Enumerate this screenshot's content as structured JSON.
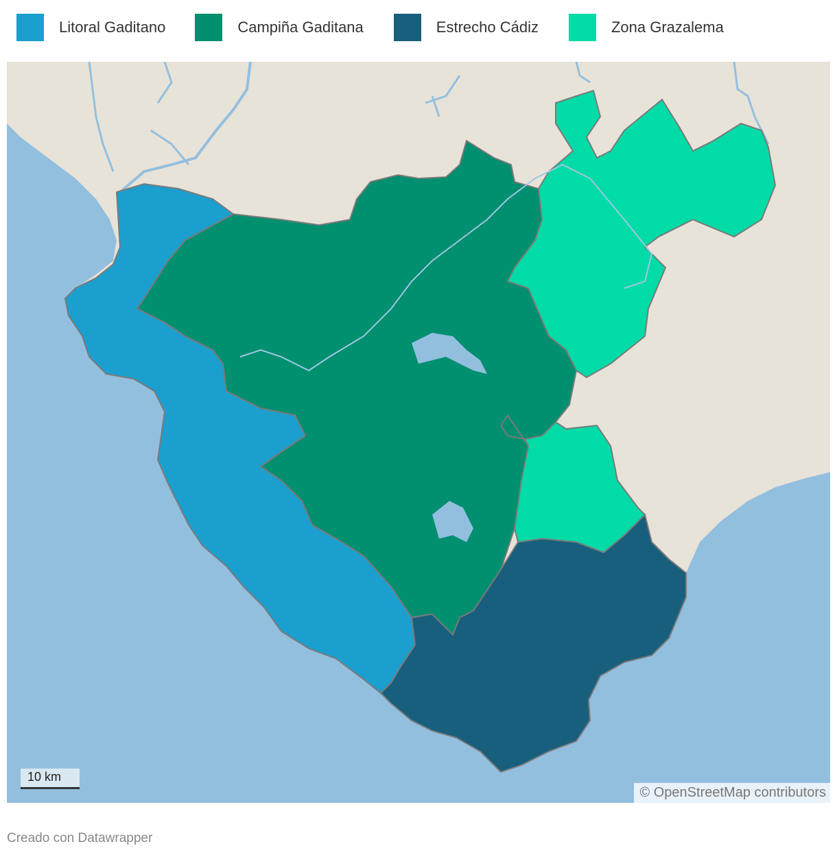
{
  "legend": {
    "items": [
      {
        "label": "Litoral Gaditano",
        "color": "#1b9fcf"
      },
      {
        "label": "Campiña Gaditana",
        "color": "#008f6f"
      },
      {
        "label": "Estrecho Cádiz",
        "color": "#175f7d"
      },
      {
        "label": "Zona Grazalema",
        "color": "#00dba7"
      }
    ]
  },
  "map": {
    "sea_color": "#93bfdf",
    "land_color": "#e8e3d8",
    "scale_label": "10 km",
    "attribution": "© OpenStreetMap contributors"
  },
  "footer": {
    "credit": "Creado con Datawrapper"
  }
}
